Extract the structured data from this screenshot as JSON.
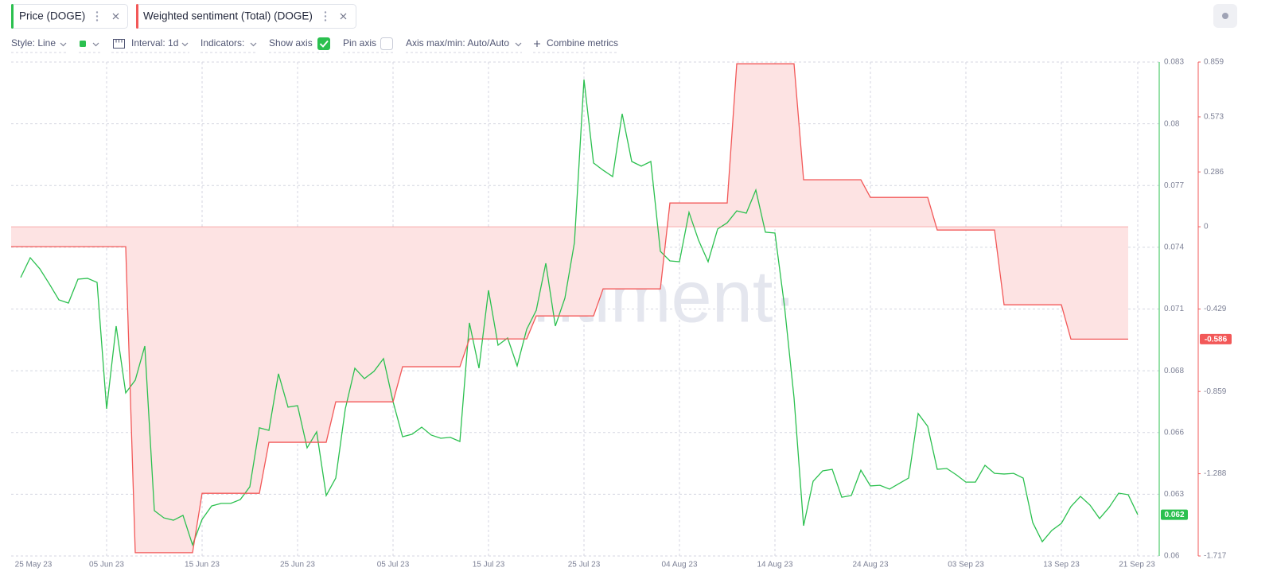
{
  "ui": {
    "toolbar": {
      "style": "Style: Line",
      "interval": "Interval: 1d",
      "indicators": "Indicators:",
      "show_axis": "Show axis",
      "pin_axis": "Pin axis",
      "axis_range": "Axis max/min: Auto/Auto",
      "combine": "Combine metrics"
    },
    "watermark": "·santiment·"
  },
  "chart_data": {
    "type": "line",
    "x": [
      "2023-05-26",
      "2023-05-27",
      "2023-05-28",
      "2023-05-29",
      "2023-05-30",
      "2023-05-31",
      "2023-06-01",
      "2023-06-02",
      "2023-06-03",
      "2023-06-04",
      "2023-06-05",
      "2023-06-06",
      "2023-06-07",
      "2023-06-08",
      "2023-06-09",
      "2023-06-10",
      "2023-06-11",
      "2023-06-12",
      "2023-06-13",
      "2023-06-14",
      "2023-06-15",
      "2023-06-16",
      "2023-06-17",
      "2023-06-18",
      "2023-06-19",
      "2023-06-20",
      "2023-06-21",
      "2023-06-22",
      "2023-06-23",
      "2023-06-24",
      "2023-06-25",
      "2023-06-26",
      "2023-06-27",
      "2023-06-28",
      "2023-06-29",
      "2023-06-30",
      "2023-07-01",
      "2023-07-02",
      "2023-07-03",
      "2023-07-04",
      "2023-07-05",
      "2023-07-06",
      "2023-07-07",
      "2023-07-08",
      "2023-07-09",
      "2023-07-10",
      "2023-07-11",
      "2023-07-12",
      "2023-07-13",
      "2023-07-14",
      "2023-07-15",
      "2023-07-16",
      "2023-07-17",
      "2023-07-18",
      "2023-07-19",
      "2023-07-20",
      "2023-07-21",
      "2023-07-22",
      "2023-07-23",
      "2023-07-24",
      "2023-07-25",
      "2023-07-26",
      "2023-07-27",
      "2023-07-28",
      "2023-07-29",
      "2023-07-30",
      "2023-07-31",
      "2023-08-01",
      "2023-08-02",
      "2023-08-03",
      "2023-08-04",
      "2023-08-05",
      "2023-08-06",
      "2023-08-07",
      "2023-08-08",
      "2023-08-09",
      "2023-08-10",
      "2023-08-11",
      "2023-08-12",
      "2023-08-13",
      "2023-08-14",
      "2023-08-15",
      "2023-08-16",
      "2023-08-17",
      "2023-08-18",
      "2023-08-19",
      "2023-08-20",
      "2023-08-21",
      "2023-08-22",
      "2023-08-23",
      "2023-08-24",
      "2023-08-25",
      "2023-08-26",
      "2023-08-27",
      "2023-08-28",
      "2023-08-29",
      "2023-08-30",
      "2023-08-31",
      "2023-09-01",
      "2023-09-02",
      "2023-09-03",
      "2023-09-04",
      "2023-09-05",
      "2023-09-06",
      "2023-09-07",
      "2023-09-08",
      "2023-09-09",
      "2023-09-10",
      "2023-09-11",
      "2023-09-12",
      "2023-09-13",
      "2023-09-14",
      "2023-09-15",
      "2023-09-16",
      "2023-09-17",
      "2023-09-18",
      "2023-09-19",
      "2023-09-20",
      "2023-09-21"
    ],
    "xlim": [
      "2023-05-26",
      "2023-09-23"
    ],
    "xticks": [
      {
        "value": "2023-05-25",
        "label": "25 May 23"
      },
      {
        "value": "2023-06-05",
        "label": "05 Jun 23"
      },
      {
        "value": "2023-06-15",
        "label": "15 Jun 23"
      },
      {
        "value": "2023-06-25",
        "label": "25 Jun 23"
      },
      {
        "value": "2023-07-05",
        "label": "05 Jul 23"
      },
      {
        "value": "2023-07-15",
        "label": "15 Jul 23"
      },
      {
        "value": "2023-07-25",
        "label": "25 Jul 23"
      },
      {
        "value": "2023-08-04",
        "label": "04 Aug 23"
      },
      {
        "value": "2023-08-14",
        "label": "14 Aug 23"
      },
      {
        "value": "2023-08-24",
        "label": "24 Aug 23"
      },
      {
        "value": "2023-09-03",
        "label": "03 Sep 23"
      },
      {
        "value": "2023-09-13",
        "label": "13 Sep 23"
      },
      {
        "value": "2023-09-21",
        "label": "21 Sep 23"
      }
    ],
    "ylim": [
      0.05975,
      0.08295
    ],
    "yticks": [
      {
        "value": 0.05975,
        "label": "0.06"
      },
      {
        "value": 0.06265,
        "label": "0.063"
      },
      {
        "value": 0.06555,
        "label": "0.066"
      },
      {
        "value": 0.06845,
        "label": "0.068"
      },
      {
        "value": 0.07135,
        "label": "0.071"
      },
      {
        "value": 0.07425,
        "label": "0.074"
      },
      {
        "value": 0.07715,
        "label": "0.077"
      },
      {
        "value": 0.08005,
        "label": "0.08"
      },
      {
        "value": 0.08295,
        "label": "0.083"
      }
    ],
    "y2lim": [
      -1.717,
      0.859
    ],
    "y2ticks": [
      -1.717,
      -1.288,
      -0.859,
      -0.429,
      0,
      0.286,
      0.573,
      0.859
    ],
    "grid": true,
    "series": [
      {
        "name": "Price (DOGE)",
        "color": "#2bc04f",
        "current_label": "0.062",
        "values": [
          null,
          0.07283,
          0.07376,
          0.07324,
          0.07253,
          0.07178,
          0.07163,
          0.07275,
          0.07279,
          0.0726,
          0.06666,
          0.07055,
          0.06741,
          0.06801,
          0.06961,
          0.06188,
          0.06154,
          0.06143,
          0.06166,
          0.06027,
          0.06147,
          0.0621,
          0.06222,
          0.06222,
          0.0624,
          0.063,
          0.06577,
          0.06565,
          0.06831,
          0.06674,
          0.06681,
          0.06483,
          0.06558,
          0.06259,
          0.06341,
          0.06666,
          0.06857,
          0.06808,
          0.06842,
          0.06902,
          0.067,
          0.06535,
          0.06547,
          0.0658,
          0.06543,
          0.06528,
          0.06532,
          0.06513,
          0.0707,
          0.06857,
          0.07223,
          0.06965,
          0.06999,
          0.06868,
          0.0704,
          0.07129,
          0.0735,
          0.07055,
          0.07186,
          0.07447,
          0.08213,
          0.07821,
          0.07787,
          0.07757,
          0.08052,
          0.07828,
          0.07806,
          0.07828,
          0.07406,
          0.07361,
          0.07357,
          0.07589,
          0.07458,
          0.07357,
          0.07511,
          0.0754,
          0.07596,
          0.07585,
          0.07694,
          0.07496,
          0.07492,
          0.07148,
          0.06718,
          0.06117,
          0.06326,
          0.06375,
          0.06382,
          0.06251,
          0.06259,
          0.06378,
          0.06304,
          0.06307,
          0.06289,
          0.06315,
          0.06341,
          0.06644,
          0.06584,
          0.06382,
          0.06386,
          0.06356,
          0.06322,
          0.06322,
          0.06401,
          0.06363,
          0.0636,
          0.06363,
          0.06341,
          0.06132,
          0.06042,
          0.06095,
          0.06128,
          0.06207,
          0.06255,
          0.06214,
          0.06151,
          0.06203,
          0.0627,
          0.06263,
          0.06169
        ]
      },
      {
        "name": "Weighted sentiment (Total) (DOGE)",
        "color": "#f25858",
        "fill": "#fde3e3",
        "axis": "y2",
        "current_label": "-0.586",
        "values": [
          -0.104,
          -0.104,
          -0.104,
          -0.104,
          -0.104,
          -0.104,
          -0.104,
          -0.104,
          -0.104,
          -0.104,
          -0.104,
          -0.104,
          -0.104,
          -1.7,
          -1.7,
          -1.7,
          -1.7,
          -1.7,
          -1.7,
          -1.7,
          -1.39,
          -1.39,
          -1.39,
          -1.39,
          -1.39,
          -1.39,
          -1.39,
          -1.124,
          -1.124,
          -1.124,
          -1.124,
          -1.124,
          -1.124,
          -1.124,
          -0.913,
          -0.913,
          -0.913,
          -0.913,
          -0.913,
          -0.913,
          -0.913,
          -0.73,
          -0.73,
          -0.73,
          -0.73,
          -0.73,
          -0.73,
          -0.73,
          -0.585,
          -0.585,
          -0.585,
          -0.585,
          -0.585,
          -0.585,
          -0.585,
          -0.465,
          -0.465,
          -0.465,
          -0.465,
          -0.465,
          -0.465,
          -0.465,
          -0.324,
          -0.324,
          -0.324,
          -0.324,
          -0.324,
          -0.324,
          -0.324,
          0.124,
          0.124,
          0.124,
          0.124,
          0.124,
          0.124,
          0.124,
          0.85,
          0.85,
          0.85,
          0.85,
          0.85,
          0.85,
          0.85,
          0.245,
          0.245,
          0.245,
          0.245,
          0.245,
          0.245,
          0.245,
          0.153,
          0.153,
          0.153,
          0.153,
          0.153,
          0.153,
          0.153,
          -0.017,
          -0.017,
          -0.017,
          -0.017,
          -0.017,
          -0.017,
          -0.017,
          -0.407,
          -0.407,
          -0.407,
          -0.407,
          -0.407,
          -0.407,
          -0.407,
          -0.586,
          -0.586,
          -0.586,
          -0.586,
          -0.586,
          -0.586,
          -0.586,
          null
        ]
      }
    ]
  }
}
